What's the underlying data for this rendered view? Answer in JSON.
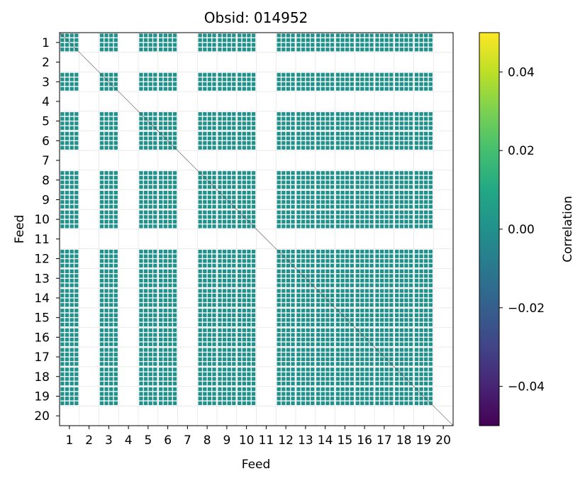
{
  "chart_data": {
    "type": "heatmap",
    "title": "Obsid: 014952",
    "xlabel": "Feed",
    "ylabel": "Feed",
    "x_tick_labels": [
      "1",
      "2",
      "3",
      "4",
      "5",
      "6",
      "7",
      "8",
      "9",
      "10",
      "11",
      "12",
      "13",
      "14",
      "15",
      "16",
      "17",
      "18",
      "19",
      "20"
    ],
    "y_tick_labels": [
      "1",
      "2",
      "3",
      "4",
      "5",
      "6",
      "7",
      "8",
      "9",
      "10",
      "11",
      "12",
      "13",
      "14",
      "15",
      "16",
      "17",
      "18",
      "19",
      "20"
    ],
    "feeds": [
      1,
      2,
      3,
      4,
      5,
      6,
      7,
      8,
      9,
      10,
      11,
      12,
      13,
      14,
      15,
      16,
      17,
      18,
      19,
      20
    ],
    "active_feeds": [
      1,
      3,
      5,
      6,
      8,
      9,
      10,
      12,
      13,
      14,
      15,
      16,
      17,
      18,
      19
    ],
    "inactive_feeds": [
      2,
      4,
      7,
      11,
      20
    ],
    "subfeed_blocks_per_feed": 4,
    "cell_value": 0.0,
    "colormap": "viridis",
    "colorbar": {
      "label": "Correlation",
      "vmin": -0.05,
      "vmax": 0.05,
      "ticks": [
        -0.04,
        -0.02,
        0.0,
        0.02,
        0.04
      ],
      "tick_labels": [
        "−0.04",
        "−0.02",
        "0.00",
        "0.02",
        "0.04"
      ]
    },
    "grid": true
  }
}
